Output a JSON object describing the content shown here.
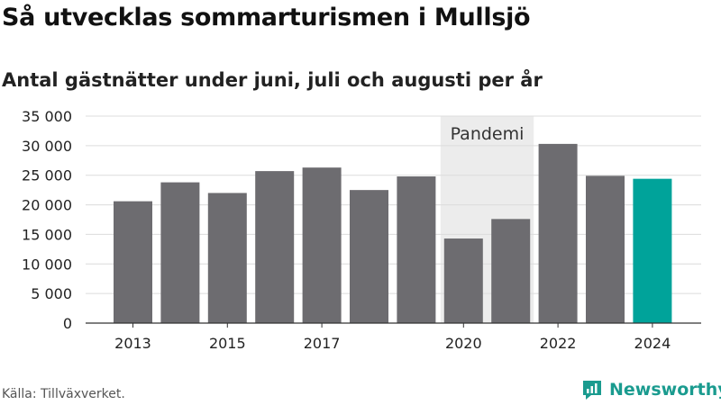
{
  "header": {
    "title": "Så utvecklas sommarturismen i Mullsjö",
    "subtitle": "Antal gästnätter under juni, juli och augusti per år"
  },
  "footer": {
    "source": "Källa: Tillväxverket.",
    "brand": "Newsworthy"
  },
  "chart_data": {
    "type": "bar",
    "categories": [
      "2013",
      "2014",
      "2015",
      "2016",
      "2017",
      "2018",
      "2019",
      "2020",
      "2021",
      "2022",
      "2023",
      "2024"
    ],
    "values": [
      20600,
      23800,
      22000,
      25700,
      26300,
      22500,
      24800,
      14300,
      17600,
      30300,
      24900,
      24400
    ],
    "x_tick_labels": [
      "2013",
      "2015",
      "2017",
      "2020",
      "2022",
      "2024"
    ],
    "y_ticks": [
      0,
      5000,
      10000,
      15000,
      20000,
      25000,
      30000,
      35000
    ],
    "y_tick_labels": [
      "0",
      "5 000",
      "10 000",
      "15 000",
      "20 000",
      "25 000",
      "30 000",
      "35 000"
    ],
    "ylim": [
      0,
      35000
    ],
    "highlight_category": "2024",
    "annotation": {
      "label": "Pandemi",
      "from": "2020",
      "to": "2021"
    },
    "colors": {
      "bar": "#6d6c70",
      "highlight": "#00a39a",
      "shade": "#ececec",
      "grid": "#dcdcdc",
      "axis": "#333333"
    },
    "grid": true
  }
}
